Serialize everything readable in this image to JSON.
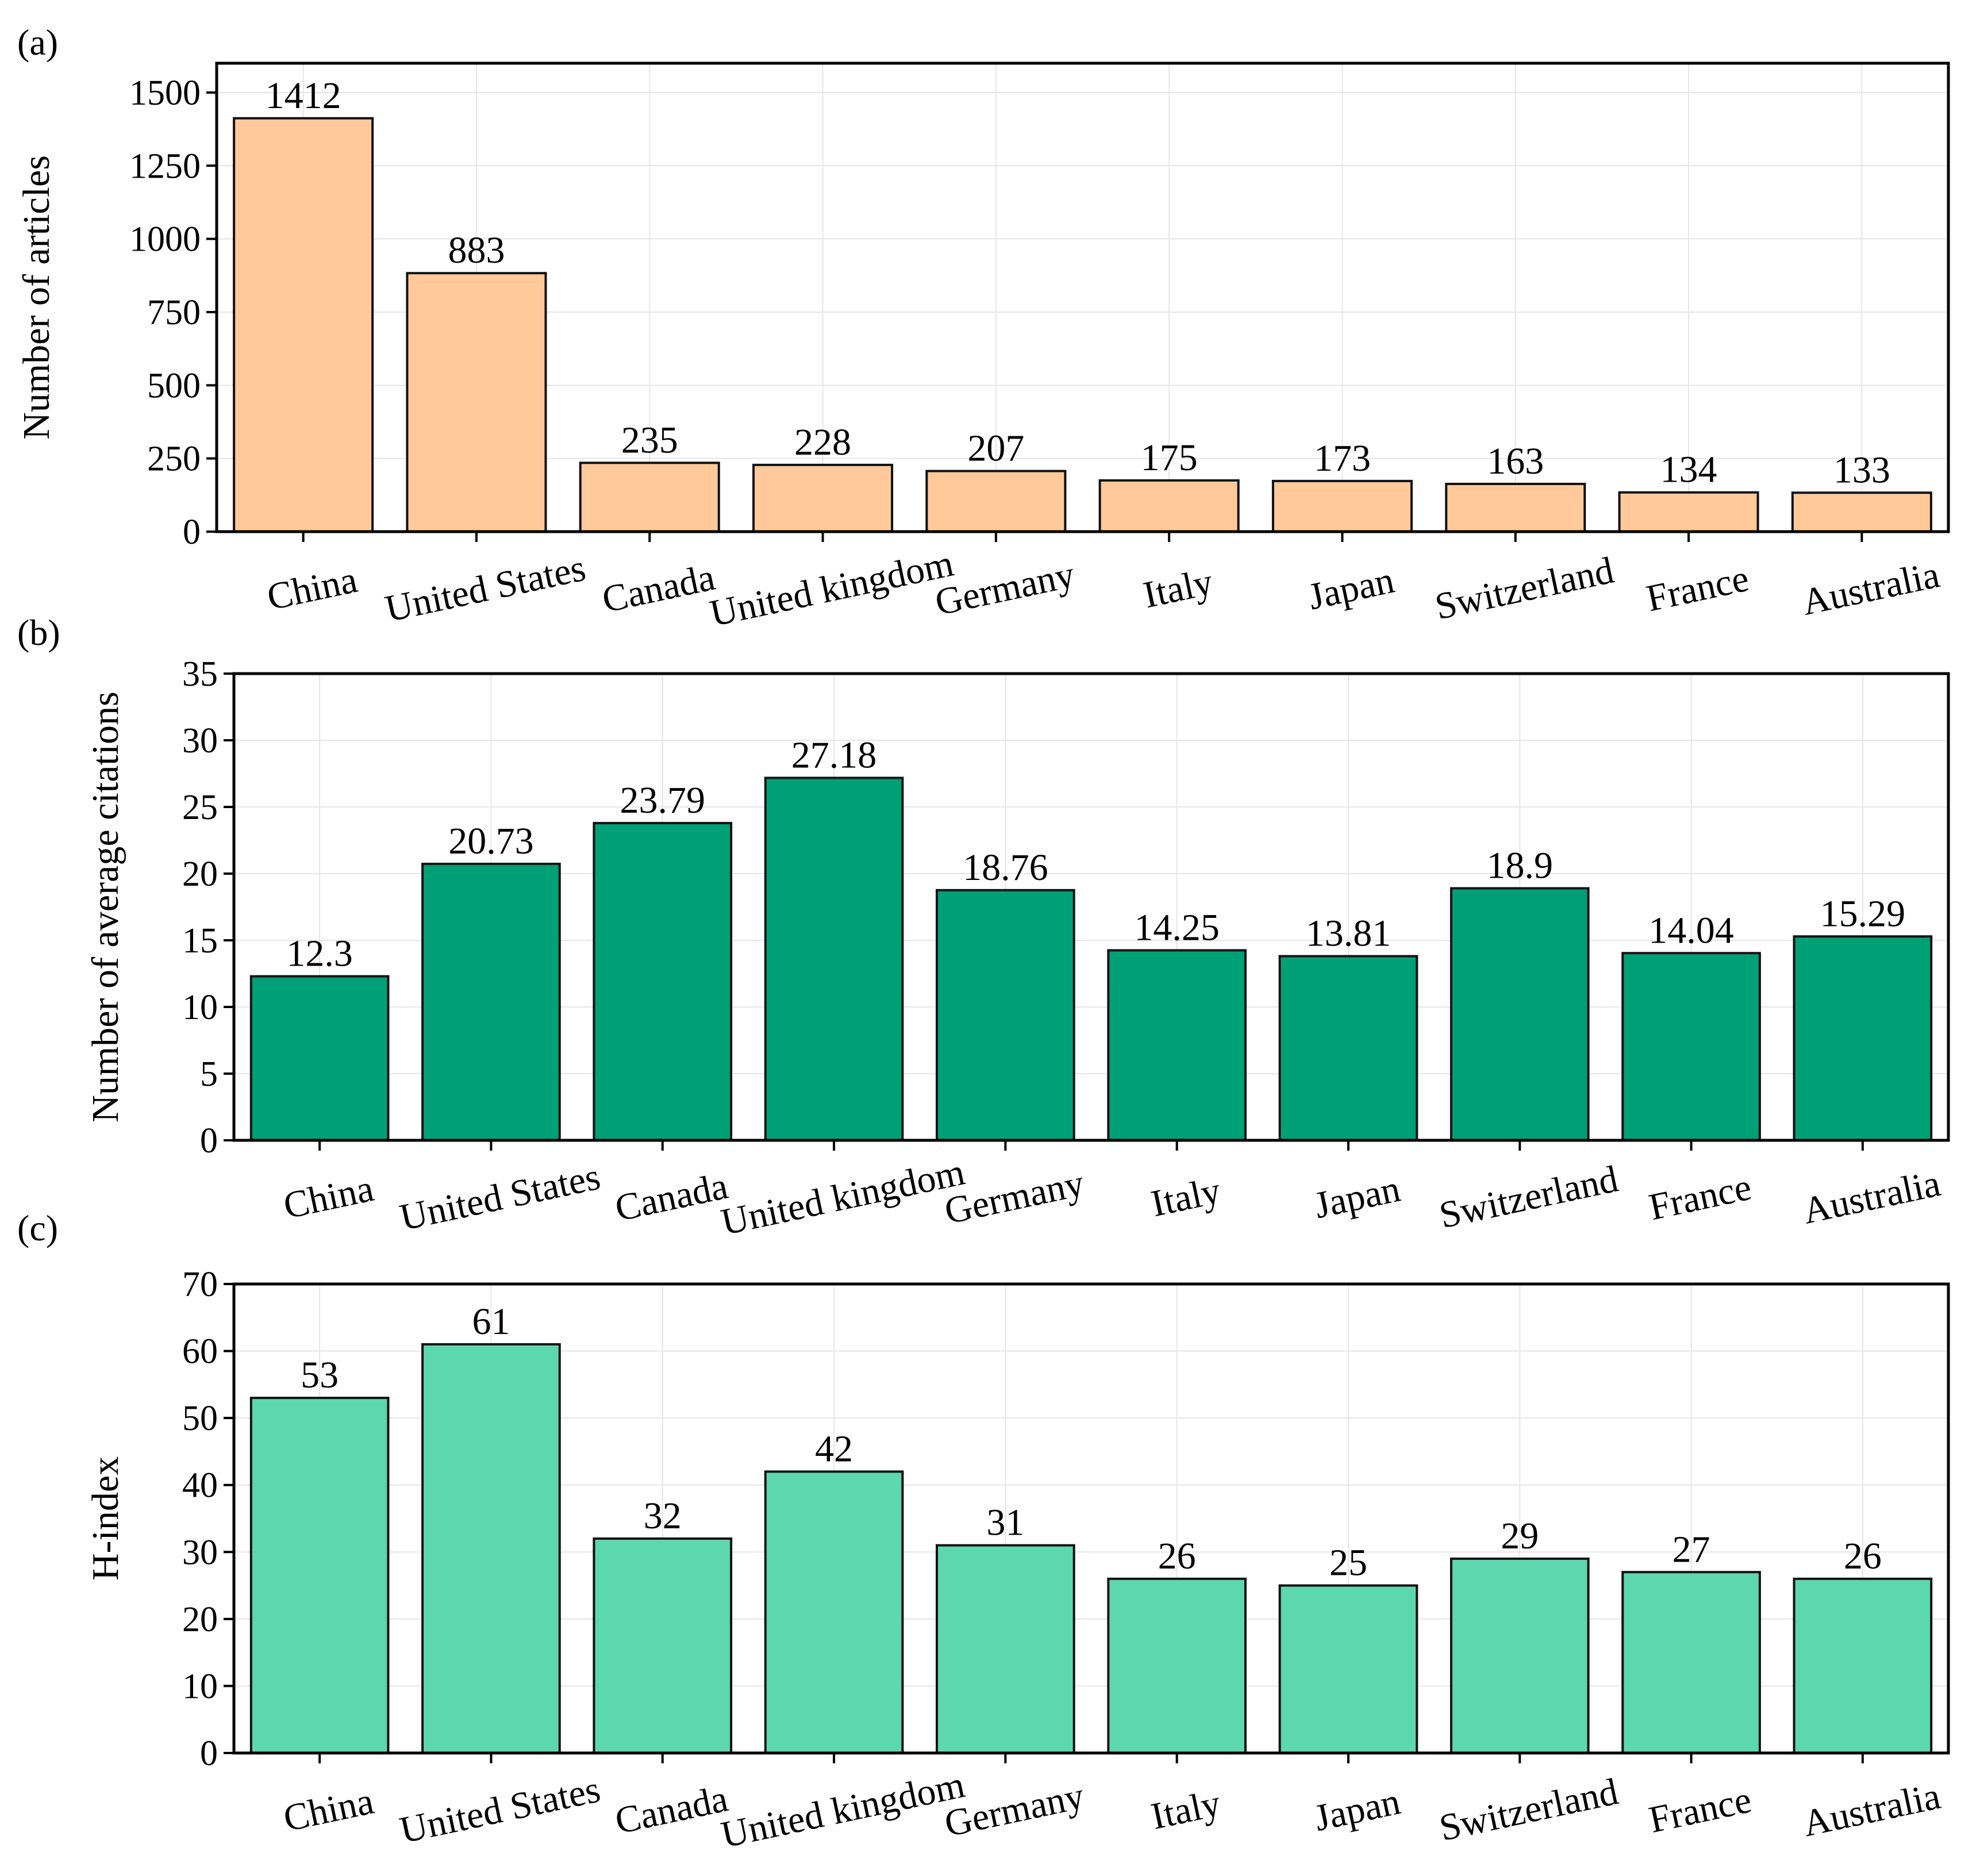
{
  "chart_data": [
    {
      "type": "bar",
      "panel": "(a)",
      "categories": [
        "China",
        "United States",
        "Canada",
        "United kingdom",
        "Germany",
        "Italy",
        "Japan",
        "Switzerland",
        "France",
        "Australia"
      ],
      "values": [
        1412,
        883,
        235,
        228,
        207,
        175,
        173,
        163,
        134,
        133
      ],
      "value_labels": [
        "1412",
        "883",
        "235",
        "228",
        "207",
        "175",
        "173",
        "163",
        "134",
        "133"
      ],
      "ylabel": "Number of articles",
      "ylim": [
        0,
        1600
      ],
      "yticks": [
        0,
        250,
        500,
        750,
        1000,
        1250,
        1500
      ],
      "ytick_labels": [
        "0",
        "250",
        "500",
        "750",
        "1000",
        "1250",
        "1500"
      ],
      "grid": true,
      "bar_color": "#ffc999"
    },
    {
      "type": "bar",
      "panel": "(b)",
      "categories": [
        "China",
        "United States",
        "Canada",
        "United kingdom",
        "Germany",
        "Italy",
        "Japan",
        "Switzerland",
        "France",
        "Australia"
      ],
      "values": [
        12.3,
        20.73,
        23.79,
        27.18,
        18.76,
        14.25,
        13.81,
        18.9,
        14.04,
        15.29
      ],
      "value_labels": [
        "12.3",
        "20.73",
        "23.79",
        "27.18",
        "18.76",
        "14.25",
        "13.81",
        "18.9",
        "14.04",
        "15.29"
      ],
      "ylabel": "Number of average citations",
      "ylim": [
        0,
        35
      ],
      "yticks": [
        0,
        5,
        10,
        15,
        20,
        25,
        30,
        35
      ],
      "ytick_labels": [
        "0",
        "5",
        "10",
        "15",
        "20",
        "25",
        "30",
        "35"
      ],
      "grid": true,
      "bar_color": "#00a077"
    },
    {
      "type": "bar",
      "panel": "(c)",
      "categories": [
        "China",
        "United States",
        "Canada",
        "United kingdom",
        "Germany",
        "Italy",
        "Japan",
        "Switzerland",
        "France",
        "Australia"
      ],
      "values": [
        53,
        61,
        32,
        42,
        31,
        26,
        25,
        29,
        27,
        26
      ],
      "value_labels": [
        "53",
        "61",
        "32",
        "42",
        "31",
        "26",
        "25",
        "29",
        "27",
        "26"
      ],
      "ylabel": "H-index",
      "ylim": [
        0,
        70
      ],
      "yticks": [
        0,
        10,
        20,
        30,
        40,
        50,
        60,
        70
      ],
      "ytick_labels": [
        "0",
        "10",
        "20",
        "30",
        "40",
        "50",
        "60",
        "70"
      ],
      "grid": true,
      "bar_color": "#5dd7ad"
    }
  ]
}
